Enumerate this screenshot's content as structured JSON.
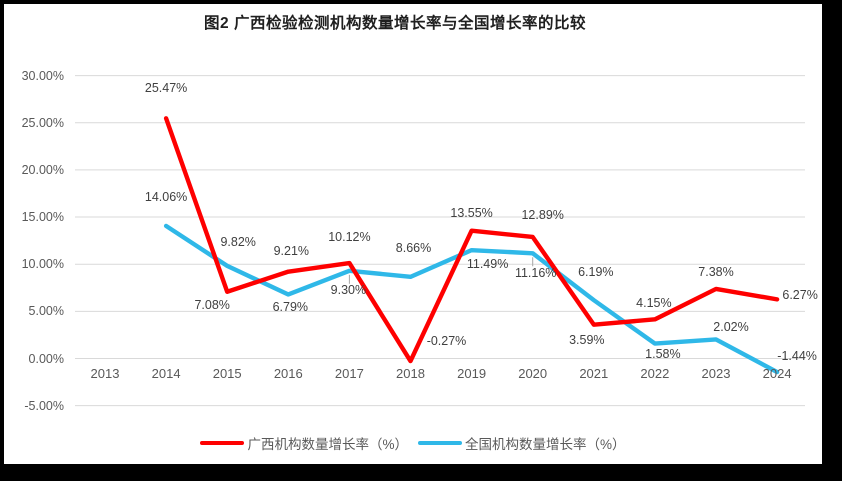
{
  "title": "图2 广西检验检测机构数量增长率与全国增长率的比较",
  "colors": {
    "frame": "#000000",
    "background": "#FFFFFF",
    "grid": "#D9D9D9",
    "leader": "#A6A6A6",
    "axis_text": "#595959",
    "data_label_text": "#404040",
    "series_guangxi": "#FE0000",
    "series_national": "#2FB8E8"
  },
  "chart_data": {
    "type": "line",
    "title": "图2 广西检验检测机构数量增长率与全国增长率的比较",
    "categories": [
      "2013",
      "2014",
      "2015",
      "2016",
      "2017",
      "2018",
      "2019",
      "2020",
      "2021",
      "2022",
      "2023",
      "2024"
    ],
    "y_axis": {
      "tick_labels": [
        "30.00%",
        "25.00%",
        "20.00%",
        "15.00%",
        "10.00%",
        "5.00%",
        "0.00%",
        "-5.00%"
      ],
      "tick_values": [
        30,
        25,
        20,
        15,
        10,
        5,
        0,
        -5
      ],
      "min": -5,
      "max": 30
    },
    "grid": true,
    "legend_position": "bottom",
    "series": [
      {
        "name": "广西机构数量增长率（%）",
        "color": "#FE0000",
        "x": [
          "2014",
          "2015",
          "2016",
          "2017",
          "2018",
          "2019",
          "2020",
          "2021",
          "2022",
          "2023",
          "2024"
        ],
        "values": [
          25.47,
          7.08,
          9.21,
          10.12,
          -0.27,
          13.55,
          12.89,
          3.59,
          4.15,
          7.38,
          6.27
        ],
        "labels": [
          "25.47%",
          "7.08%",
          "9.21%",
          "10.12%",
          "-0.27%",
          "13.55%",
          "12.89%",
          "3.59%",
          "4.15%",
          "7.38%",
          "6.27%"
        ]
      },
      {
        "name": "全国机构数量增长率（%）",
        "color": "#2FB8E8",
        "x": [
          "2014",
          "2015",
          "2016",
          "2017",
          "2018",
          "2019",
          "2020",
          "2021",
          "2022",
          "2023",
          "2024"
        ],
        "values": [
          14.06,
          9.82,
          6.79,
          9.3,
          8.66,
          11.49,
          11.16,
          6.19,
          1.58,
          2.02,
          -1.44
        ],
        "labels": [
          "14.06%",
          "9.82%",
          "6.79%",
          "9.30%",
          "8.66%",
          "11.49%",
          "11.16%",
          "6.19%",
          "1.58%",
          "2.02%",
          "-1.44%"
        ]
      }
    ]
  }
}
